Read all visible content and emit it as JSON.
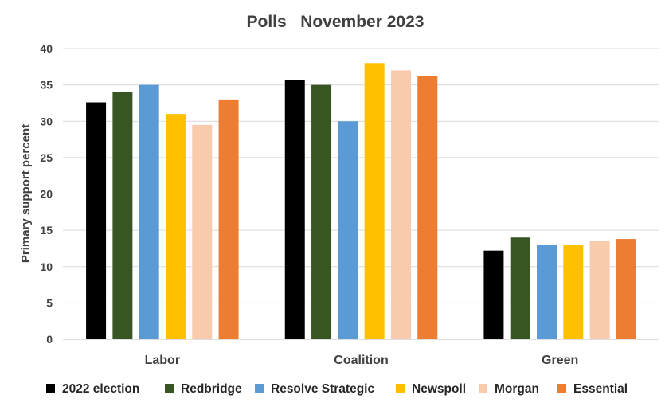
{
  "chart_data": {
    "type": "bar",
    "title": "Polls   November 2023",
    "ylabel": "Primary support percent",
    "xlabel": "",
    "ylim": [
      0,
      40
    ],
    "yticks": [
      0,
      5,
      10,
      15,
      20,
      25,
      30,
      35,
      40
    ],
    "grid": true,
    "legend_position": "bottom",
    "categories": [
      "Labor",
      "Coalition",
      "Green"
    ],
    "series": [
      {
        "name": "2022 election",
        "color": "#000000",
        "values": [
          32.6,
          35.7,
          12.2
        ]
      },
      {
        "name": "Redbridge",
        "color": "#375623",
        "values": [
          34,
          35,
          14
        ]
      },
      {
        "name": "Resolve Strategic",
        "color": "#5B9BD5",
        "values": [
          35,
          30,
          13
        ]
      },
      {
        "name": "Newspoll",
        "color": "#FFC000",
        "values": [
          31,
          38,
          13
        ]
      },
      {
        "name": "Morgan",
        "color": "#F8CBAD",
        "values": [
          29.5,
          37,
          13.5
        ]
      },
      {
        "name": "Essential",
        "color": "#ED7D31",
        "values": [
          33,
          36.2,
          13.8
        ]
      }
    ]
  }
}
